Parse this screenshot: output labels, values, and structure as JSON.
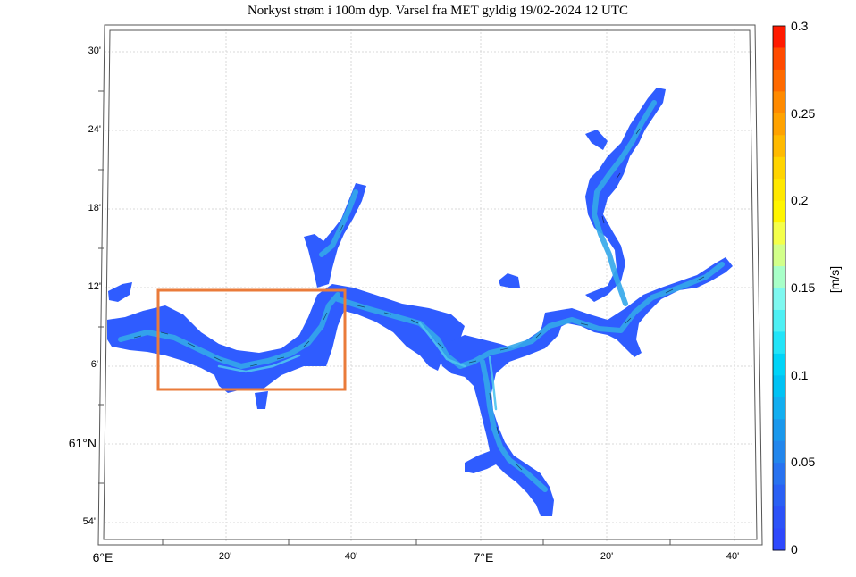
{
  "title": "Norkyst strøm i 100m dyp. Varsel fra MET gyldig 19/02-2024 12 UTC",
  "map": {
    "lat_labels": [
      {
        "text": "30'",
        "major": false
      },
      {
        "text": "24'",
        "major": false
      },
      {
        "text": "18'",
        "major": false
      },
      {
        "text": "12'",
        "major": false
      },
      {
        "text": "6'",
        "major": false
      },
      {
        "text": "61°N",
        "major": true
      },
      {
        "text": "54'",
        "major": false
      }
    ],
    "lon_labels": [
      {
        "text": "6°E",
        "major": true
      },
      {
        "text": "20'",
        "major": false
      },
      {
        "text": "40'",
        "major": false
      },
      {
        "text": "7°E",
        "major": true
      },
      {
        "text": "20'",
        "major": false
      },
      {
        "text": "40'",
        "major": false
      }
    ],
    "highlight_box_color": "#ea7b3a",
    "current_color_base": "#2f5cff",
    "current_color_fast": "#34a8ea"
  },
  "colorbar": {
    "label": "[m/s]",
    "ticks": [
      "0.3",
      "0.25",
      "0.2",
      "0.15",
      "0.1",
      "0.05",
      "0"
    ],
    "range": [
      0,
      0.3
    ],
    "colors": [
      "#ff1a00",
      "#ff4a00",
      "#ff6a00",
      "#ff8a00",
      "#ffa200",
      "#ffba00",
      "#ffd400",
      "#ffe800",
      "#fff500",
      "#f4ff4a",
      "#d2ff8a",
      "#a8ffc8",
      "#7ef8f0",
      "#4ef0f4",
      "#22e4f8",
      "#00d4f8",
      "#00c2f4",
      "#12aef0",
      "#1a98ec",
      "#2286ec",
      "#2872f0",
      "#2a60f4",
      "#2c52f8",
      "#2e48fc"
    ]
  }
}
